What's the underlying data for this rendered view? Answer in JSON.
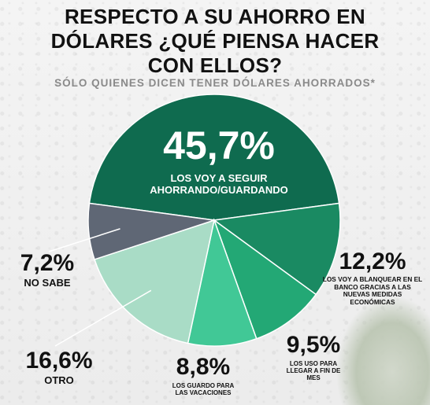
{
  "title_lines": [
    "RESPECTO A SU AHORRO EN",
    "DÓLARES ¿QUÉ PIENSA HACER",
    "CON ELLOS?"
  ],
  "subtitle": "SÓLO QUIENES DICEN TENER DÓLARES AHORRADOS*",
  "chart_data": {
    "type": "pie",
    "title": "RESPECTO A SU AHORRO EN DÓLARES ¿QUÉ PIENSA HACER CON ELLOS?",
    "subtitle": "SÓLO QUIENES DICEN TENER DÓLARES AHORRADOS*",
    "slices": [
      {
        "label": "LOS VOY A SEGUIR AHORRANDO/GUARDANDO",
        "value": 45.7,
        "value_label": "45,7%",
        "color": "#0f6b4f"
      },
      {
        "label": "LOS VOY A BLANQUEAR EN EL BANCO GRACIAS A LAS NUEVAS MEDIDAS ECONÓMICAS",
        "value": 12.2,
        "value_label": "12,2%",
        "color": "#1a8a62"
      },
      {
        "label": "LOS USO PARA LLEGAR A FIN DE MES",
        "value": 9.5,
        "value_label": "9,5%",
        "color": "#23a875"
      },
      {
        "label": "LOS GUARDO PARA LAS VACACIONES",
        "value": 8.8,
        "value_label": "8,8%",
        "color": "#41c896"
      },
      {
        "label": "OTRO",
        "value": 16.6,
        "value_label": "16,6%",
        "color": "#a9dcc6"
      },
      {
        "label": "NO SABE",
        "value": 7.2,
        "value_label": "7,2%",
        "color": "#5f6775"
      }
    ]
  }
}
